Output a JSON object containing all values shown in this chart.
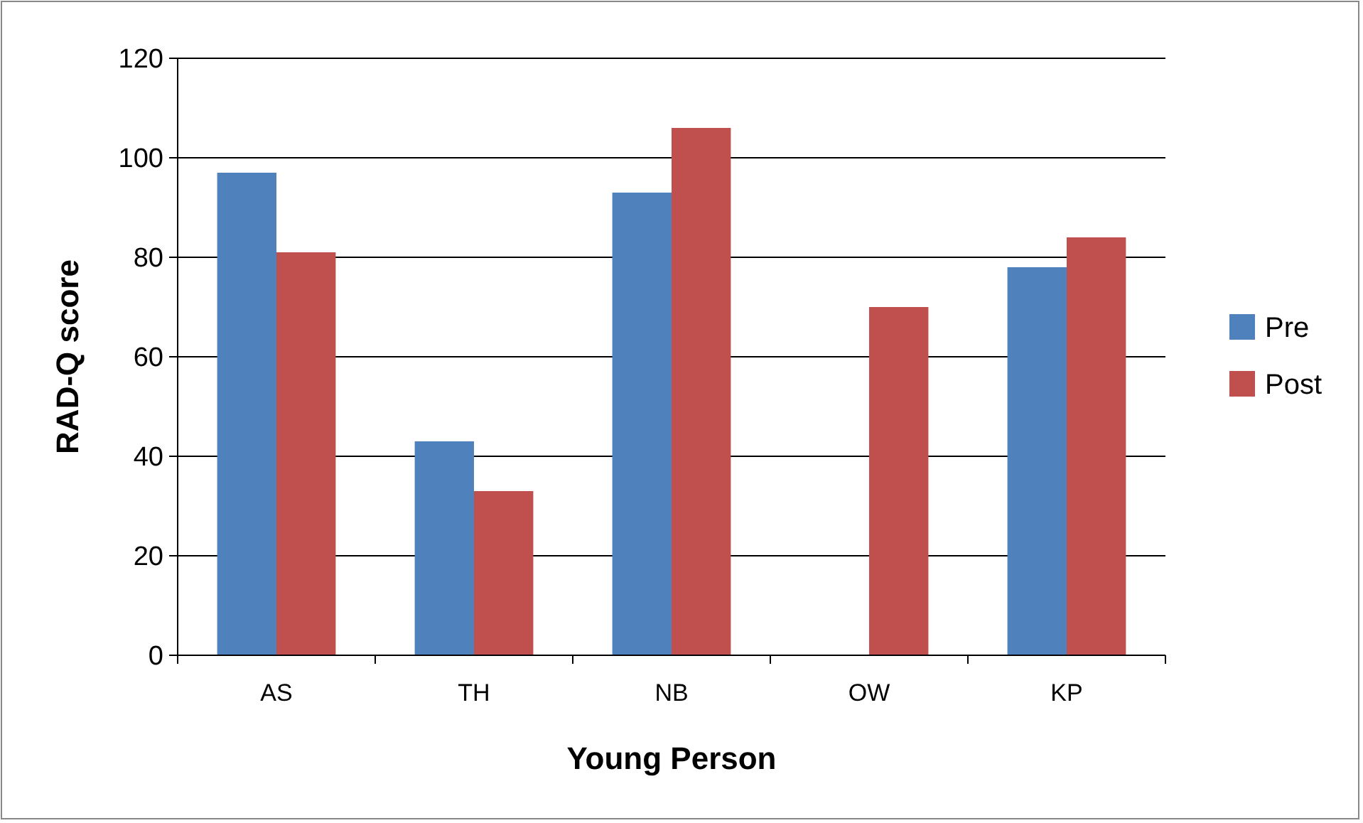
{
  "chart_data": {
    "type": "bar",
    "xlabel": "Young Person",
    "ylabel": "RAD-Q score",
    "categories": [
      "AS",
      "TH",
      "NB",
      "OW",
      "KP"
    ],
    "series": [
      {
        "name": "Pre",
        "color": "#4f81bd",
        "values": [
          97,
          43,
          93,
          null,
          78
        ]
      },
      {
        "name": "Post",
        "color": "#c0504d",
        "values": [
          81,
          33,
          106,
          70,
          84
        ]
      }
    ],
    "ylim": [
      0,
      120
    ],
    "yticks": [
      0,
      20,
      40,
      60,
      80,
      100,
      120
    ],
    "grid": "y",
    "legend": "right"
  }
}
